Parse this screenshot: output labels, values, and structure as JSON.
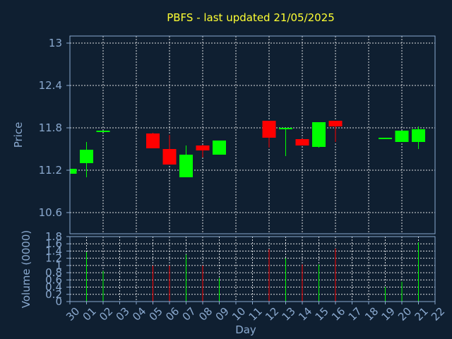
{
  "chart_data": [
    {
      "type": "candlestick",
      "title": "PBFS - last updated 21/05/2025",
      "xlabel": "",
      "ylabel": "Price",
      "ylim": [
        10.3,
        13.1
      ],
      "yticks": [
        "13",
        "12.4",
        "11.8",
        "11.2",
        "10.6"
      ],
      "ytick_values": [
        13.0,
        12.4,
        11.8,
        11.2,
        10.6
      ],
      "grid": true,
      "colors": {
        "up": "#00ff00",
        "down": "#ff0000",
        "title": "#ffff33",
        "axis": "#8aa9cf",
        "background": "#0f1f31"
      },
      "candles": [
        {
          "day": "30",
          "open": 11.15,
          "high": 11.22,
          "low": 11.15,
          "close": 11.22
        },
        {
          "day": "01",
          "open": 11.3,
          "high": 11.6,
          "low": 11.1,
          "close": 11.49
        },
        {
          "day": "02",
          "open": 11.75,
          "high": 11.76,
          "low": 11.74,
          "close": 11.76
        },
        {
          "day": "05",
          "open": 11.72,
          "high": 11.73,
          "low": 11.51,
          "close": 11.51
        },
        {
          "day": "06",
          "open": 11.5,
          "high": 11.7,
          "low": 11.28,
          "close": 11.28
        },
        {
          "day": "07",
          "open": 11.1,
          "high": 11.55,
          "low": 11.1,
          "close": 11.42
        },
        {
          "day": "08",
          "open": 11.55,
          "high": 11.56,
          "low": 11.38,
          "close": 11.48
        },
        {
          "day": "09",
          "open": 11.42,
          "high": 11.62,
          "low": 11.42,
          "close": 11.62
        },
        {
          "day": "12",
          "open": 11.9,
          "high": 11.9,
          "low": 11.52,
          "close": 11.66
        },
        {
          "day": "13",
          "open": 11.78,
          "high": 11.8,
          "low": 11.4,
          "close": 11.8
        },
        {
          "day": "14",
          "open": 11.64,
          "high": 11.65,
          "low": 11.55,
          "close": 11.55
        },
        {
          "day": "15",
          "open": 11.53,
          "high": 11.88,
          "low": 11.52,
          "close": 11.88
        },
        {
          "day": "16",
          "open": 11.9,
          "high": 11.9,
          "low": 11.6,
          "close": 11.82
        },
        {
          "day": "19",
          "open": 11.64,
          "high": 11.66,
          "low": 11.64,
          "close": 11.66
        },
        {
          "day": "20",
          "open": 11.6,
          "high": 11.76,
          "low": 11.6,
          "close": 11.76
        },
        {
          "day": "21",
          "open": 11.6,
          "high": 11.82,
          "low": 11.5,
          "close": 11.78
        }
      ]
    },
    {
      "type": "bar",
      "xlabel": "Day",
      "ylabel": "Volume (0000)",
      "ylim": [
        0,
        1.8
      ],
      "yticks": [
        "1.8",
        "1.6",
        "1.4",
        "1.2",
        "1",
        "0.8",
        "0.6",
        "0.4",
        "0.2",
        "0"
      ],
      "ytick_values": [
        1.8,
        1.6,
        1.4,
        1.2,
        1.0,
        0.8,
        0.6,
        0.4,
        0.2,
        0.0
      ],
      "categories": [
        "30",
        "01",
        "02",
        "03",
        "04",
        "05",
        "06",
        "07",
        "08",
        "09",
        "10",
        "11",
        "12",
        "13",
        "14",
        "15",
        "16",
        "17",
        "18",
        "19",
        "20",
        "21",
        "22"
      ],
      "bars": [
        {
          "day": "01",
          "value": 1.37,
          "color": "#00ff00"
        },
        {
          "day": "02",
          "value": 0.85,
          "color": "#00ff00"
        },
        {
          "day": "05",
          "value": 1.0,
          "color": "#ff0000"
        },
        {
          "day": "06",
          "value": 1.0,
          "color": "#ff0000"
        },
        {
          "day": "07",
          "value": 1.3,
          "color": "#00ff00"
        },
        {
          "day": "08",
          "value": 1.0,
          "color": "#ff0000"
        },
        {
          "day": "09",
          "value": 0.65,
          "color": "#00ff00"
        },
        {
          "day": "12",
          "value": 1.45,
          "color": "#ff0000"
        },
        {
          "day": "13",
          "value": 1.2,
          "color": "#00ff00"
        },
        {
          "day": "14",
          "value": 1.03,
          "color": "#ff0000"
        },
        {
          "day": "15",
          "value": 1.03,
          "color": "#00ff00"
        },
        {
          "day": "16",
          "value": 1.47,
          "color": "#ff0000"
        },
        {
          "day": "19",
          "value": 0.4,
          "color": "#00ff00"
        },
        {
          "day": "20",
          "value": 0.55,
          "color": "#00ff00"
        },
        {
          "day": "21",
          "value": 1.64,
          "color": "#00ff00"
        }
      ]
    }
  ]
}
